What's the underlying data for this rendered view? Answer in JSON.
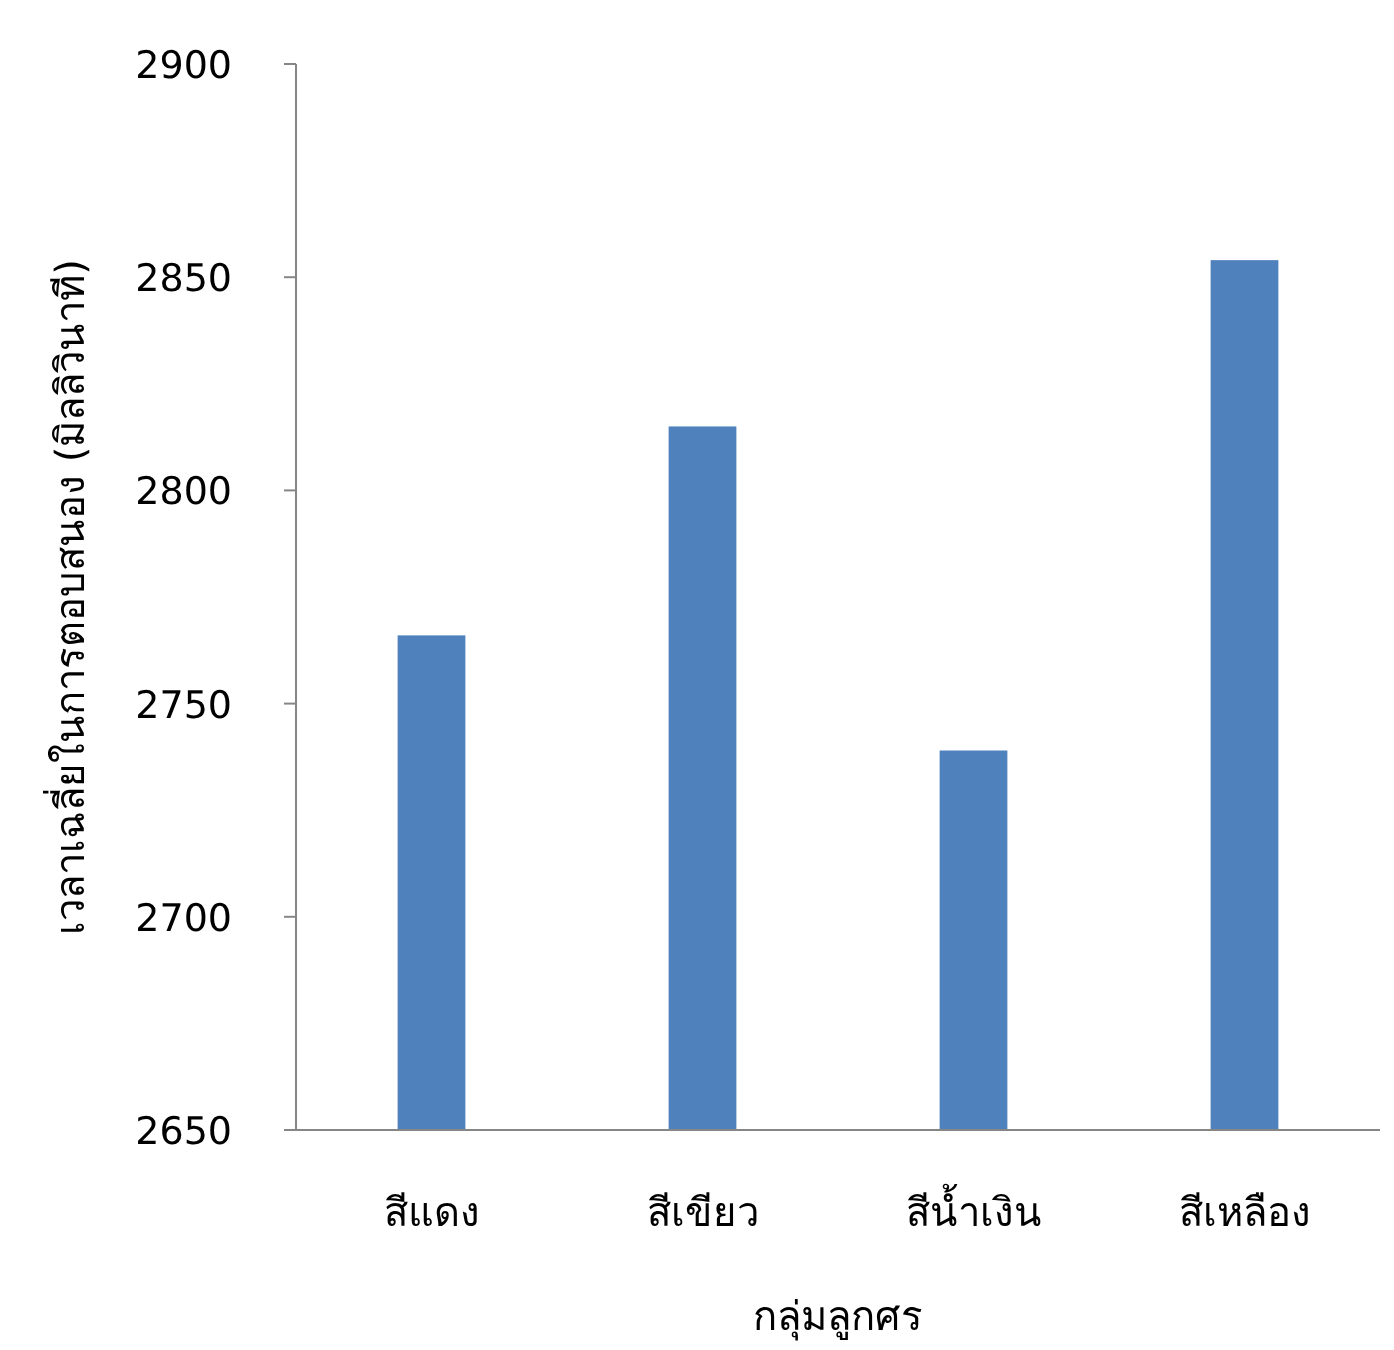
{
  "chart_data": {
    "type": "bar",
    "xlabel": "กลุ่มลูกศร",
    "ylabel": "เวลาเฉลี่ยในการตอบสนอง (มิลลิวินาที)",
    "categories": [
      "สีแดง",
      "สีเขียว",
      "สีน้ำเงิน",
      "สีเหลือง"
    ],
    "values": [
      2766,
      2815,
      2739,
      2854
    ],
    "color": "#4f81bd",
    "ylim": [
      2650,
      2900
    ],
    "yticks": [
      2650,
      2700,
      2750,
      2800,
      2850,
      2900
    ],
    "grid": false
  }
}
